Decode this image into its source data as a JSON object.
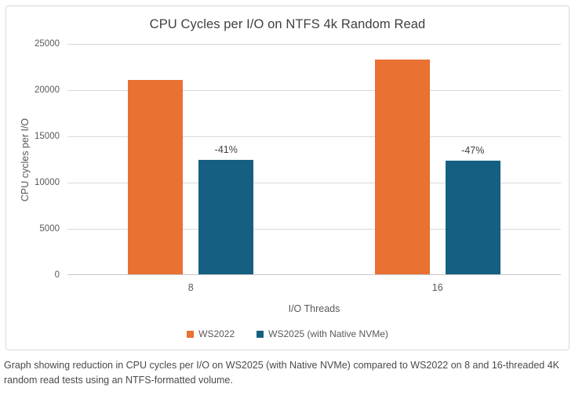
{
  "page": {
    "caption": "Graph showing reduction in CPU cycles per I/O on WS2025 (with Native NVMe) compared to WS2022 on 8 and 16-threaded 4K random read tests using an NTFS-formatted volume."
  },
  "chart_data": {
    "type": "bar",
    "title": "CPU Cycles per I/O on NTFS 4k Random Read",
    "categories": [
      "8",
      "16"
    ],
    "series": [
      {
        "name": "WS2022",
        "color": "#E97132",
        "values": [
          21000,
          23200
        ]
      },
      {
        "name": "WS2025 (with Native NVMe)",
        "color": "#156082",
        "values": [
          12400,
          12250
        ],
        "bar_labels": [
          "-41%",
          "-47%"
        ]
      }
    ],
    "xlabel": "I/O Threads",
    "ylabel": "CPU cycles per I/O",
    "ylim": [
      0,
      25000
    ],
    "ytick_interval": 5000,
    "ytick_labels": [
      "0",
      "5000",
      "10000",
      "15000",
      "20000",
      "25000"
    ],
    "grid": true,
    "legend_position": "bottom",
    "colors": {
      "gridline": "#D9D9D9",
      "axis_line": "#C6C6C6",
      "tick_text": "#595959",
      "title_text": "#404040",
      "bar_label_text": "#404040"
    }
  }
}
